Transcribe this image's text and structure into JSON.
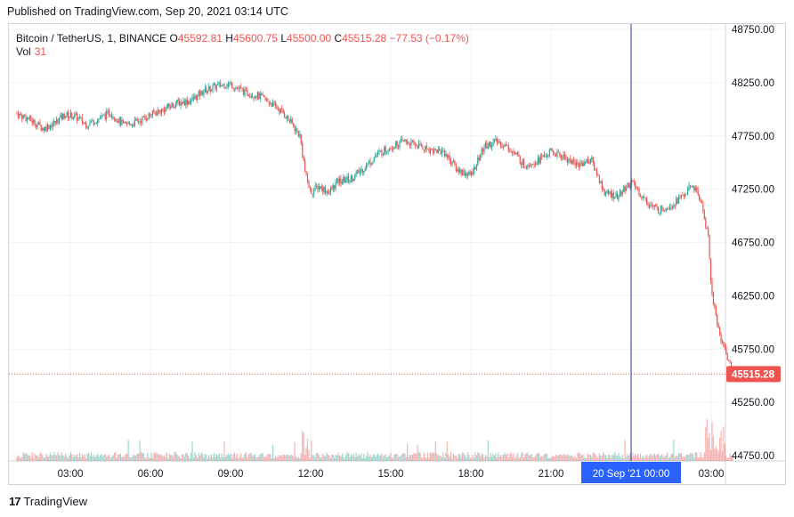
{
  "header": {
    "published": "Published on TradingView.com, Sep 20, 2021 03:14 UTC"
  },
  "legend": {
    "symbol": "Bitcoin / TetherUS, 1, BINANCE",
    "open_label": "O",
    "open": "45592.81",
    "high_label": "H",
    "high": "45600.75",
    "low_label": "L",
    "low": "45500.00",
    "close_label": "C",
    "close": "45515.28",
    "change": "−77.53 (−0.17%)",
    "vol_label": "Vol",
    "vol_value": "31"
  },
  "footer": {
    "brand": "TradingView",
    "logo_glyph": "17"
  },
  "colors": {
    "up": "#26a69a",
    "down": "#ef5350",
    "crosshair": "#2962ff",
    "grid": "#f0f3fa"
  },
  "chart_data": {
    "type": "candlestick",
    "title": "Bitcoin / TetherUS, 1, BINANCE",
    "ylim": [
      44750,
      48750
    ],
    "y_ticks": [
      "48750.00",
      "48250.00",
      "47750.00",
      "47250.00",
      "46750.00",
      "46250.00",
      "45750.00",
      "45250.00",
      "44750.00"
    ],
    "y_tick_values": [
      48750,
      48250,
      47750,
      47250,
      46750,
      46250,
      45750,
      45250,
      44750
    ],
    "x_ticks": [
      "03:00",
      "06:00",
      "09:00",
      "12:00",
      "15:00",
      "18:00",
      "21:00",
      "03:00"
    ],
    "x_tick_hours": [
      3,
      6,
      9,
      12,
      15,
      18,
      21,
      27
    ],
    "crosshair_label": "20 Sep '21   00:00",
    "crosshair_hour": 24,
    "last_price": 45515.28,
    "last_price_label": "45515.28",
    "x_range_hours": [
      1.0,
      27.8
    ],
    "price_path": [
      [
        1.0,
        47960
      ],
      [
        1.5,
        47900
      ],
      [
        2.0,
        47820
      ],
      [
        2.4,
        47870
      ],
      [
        2.8,
        47950
      ],
      [
        3.2,
        47930
      ],
      [
        3.6,
        47860
      ],
      [
        4.0,
        47900
      ],
      [
        4.5,
        47970
      ],
      [
        5.0,
        47850
      ],
      [
        5.5,
        47880
      ],
      [
        6.0,
        47950
      ],
      [
        6.5,
        48000
      ],
      [
        7.0,
        48060
      ],
      [
        7.5,
        48080
      ],
      [
        8.0,
        48170
      ],
      [
        8.5,
        48220
      ],
      [
        9.0,
        48240
      ],
      [
        9.5,
        48160
      ],
      [
        10.0,
        48130
      ],
      [
        10.5,
        48060
      ],
      [
        11.0,
        47960
      ],
      [
        11.3,
        47860
      ],
      [
        11.6,
        47750
      ],
      [
        11.8,
        47400
      ],
      [
        12.0,
        47220
      ],
      [
        12.3,
        47280
      ],
      [
        12.7,
        47220
      ],
      [
        13.0,
        47320
      ],
      [
        13.5,
        47350
      ],
      [
        14.0,
        47450
      ],
      [
        14.5,
        47580
      ],
      [
        15.0,
        47650
      ],
      [
        15.5,
        47700
      ],
      [
        16.0,
        47660
      ],
      [
        16.5,
        47620
      ],
      [
        17.0,
        47600
      ],
      [
        17.5,
        47430
      ],
      [
        18.0,
        47380
      ],
      [
        18.5,
        47650
      ],
      [
        19.0,
        47700
      ],
      [
        19.5,
        47620
      ],
      [
        20.0,
        47480
      ],
      [
        20.5,
        47520
      ],
      [
        21.0,
        47600
      ],
      [
        21.5,
        47550
      ],
      [
        22.0,
        47480
      ],
      [
        22.5,
        47530
      ],
      [
        23.0,
        47220
      ],
      [
        23.5,
        47180
      ],
      [
        24.0,
        47320
      ],
      [
        24.5,
        47150
      ],
      [
        25.0,
        47050
      ],
      [
        25.5,
        47100
      ],
      [
        26.0,
        47200
      ],
      [
        26.3,
        47290
      ],
      [
        26.6,
        47150
      ],
      [
        26.9,
        46800
      ],
      [
        27.0,
        46300
      ],
      [
        27.3,
        45900
      ],
      [
        27.5,
        45760
      ],
      [
        27.8,
        45515
      ]
    ]
  }
}
